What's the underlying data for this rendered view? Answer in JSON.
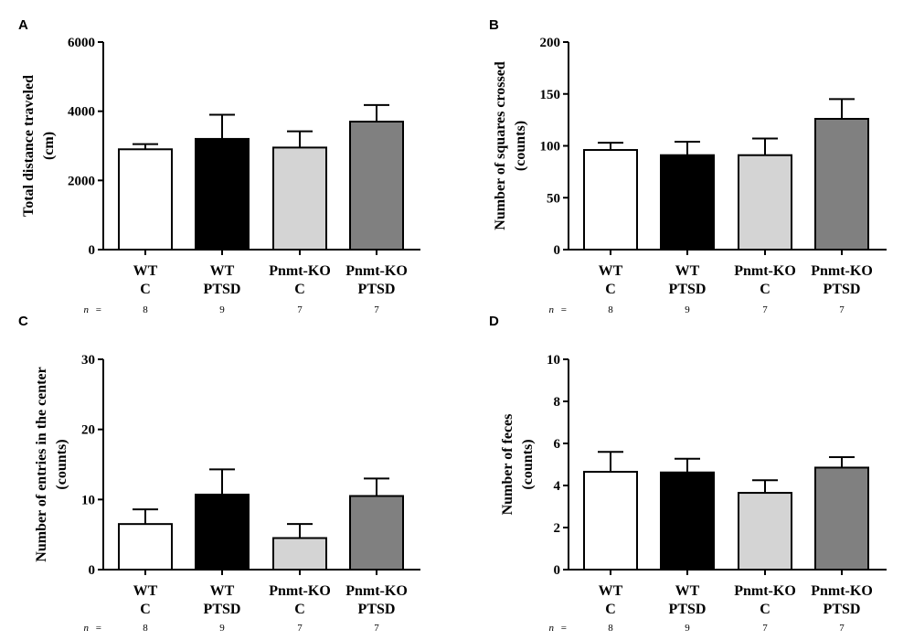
{
  "figure": {
    "n_prefix": "n",
    "n_equals": "="
  },
  "chart_data": [
    {
      "panel": "A",
      "type": "bar",
      "title": "",
      "ylabel_lines": [
        "Total distance traveled",
        "(cm)"
      ],
      "xlabel": "",
      "ylim": [
        0,
        6000
      ],
      "yticks": [
        0,
        2000,
        4000,
        6000
      ],
      "ytick_labels": [
        "0",
        "2000",
        "4000",
        "6000"
      ],
      "categories": [
        [
          "WT",
          "C"
        ],
        [
          "WT",
          "PTSD"
        ],
        [
          "Pnmt-KO",
          "C"
        ],
        [
          "Pnmt-KO",
          "PTSD"
        ]
      ],
      "values": [
        2900,
        3200,
        2950,
        3700
      ],
      "errors": [
        150,
        700,
        470,
        480
      ],
      "n": [
        "8",
        "9",
        "7",
        "7"
      ],
      "colors": [
        "#ffffff",
        "#000000",
        "#d4d4d4",
        "#808080"
      ],
      "grid": false
    },
    {
      "panel": "B",
      "type": "bar",
      "title": "",
      "ylabel_lines": [
        "Number of squares crossed",
        "(counts)"
      ],
      "xlabel": "",
      "ylim": [
        0,
        200
      ],
      "yticks": [
        0,
        50,
        100,
        150,
        200
      ],
      "ytick_labels": [
        "0",
        "50",
        "100",
        "150",
        "200"
      ],
      "categories": [
        [
          "WT",
          "C"
        ],
        [
          "WT",
          "PTSD"
        ],
        [
          "Pnmt-KO",
          "C"
        ],
        [
          "Pnmt-KO",
          "PTSD"
        ]
      ],
      "values": [
        96,
        91,
        91,
        126
      ],
      "errors": [
        7,
        13,
        16,
        19
      ],
      "n": [
        "8",
        "9",
        "7",
        "7"
      ],
      "colors": [
        "#ffffff",
        "#000000",
        "#d4d4d4",
        "#808080"
      ],
      "grid": false
    },
    {
      "panel": "C",
      "type": "bar",
      "title": "",
      "ylabel_lines": [
        "Number of entries in the center",
        "(counts)"
      ],
      "xlabel": "",
      "ylim": [
        0,
        30
      ],
      "yticks": [
        0,
        10,
        20,
        30
      ],
      "ytick_labels": [
        "0",
        "10",
        "20",
        "30"
      ],
      "categories": [
        [
          "WT",
          "C"
        ],
        [
          "WT",
          "PTSD"
        ],
        [
          "Pnmt-KO",
          "C"
        ],
        [
          "Pnmt-KO",
          "PTSD"
        ]
      ],
      "values": [
        6.5,
        10.7,
        4.5,
        10.5
      ],
      "errors": [
        2.1,
        3.6,
        2.0,
        2.5
      ],
      "n": [
        "8",
        "9",
        "7",
        "7"
      ],
      "colors": [
        "#ffffff",
        "#000000",
        "#d4d4d4",
        "#808080"
      ],
      "grid": false
    },
    {
      "panel": "D",
      "type": "bar",
      "title": "",
      "ylabel_lines": [
        "Number of feces",
        "(counts)"
      ],
      "xlabel": "",
      "ylim": [
        0,
        10
      ],
      "yticks": [
        0,
        2,
        4,
        6,
        8,
        10
      ],
      "ytick_labels": [
        "0",
        "2",
        "4",
        "6",
        "8",
        "10"
      ],
      "categories": [
        [
          "WT",
          "C"
        ],
        [
          "WT",
          "PTSD"
        ],
        [
          "Pnmt-KO",
          "C"
        ],
        [
          "Pnmt-KO",
          "PTSD"
        ]
      ],
      "values": [
        4.65,
        4.62,
        3.65,
        4.85
      ],
      "errors": [
        0.95,
        0.65,
        0.6,
        0.5
      ],
      "n": [
        "8",
        "9",
        "7",
        "7"
      ],
      "colors": [
        "#ffffff",
        "#000000",
        "#d4d4d4",
        "#808080"
      ],
      "grid": false
    }
  ]
}
